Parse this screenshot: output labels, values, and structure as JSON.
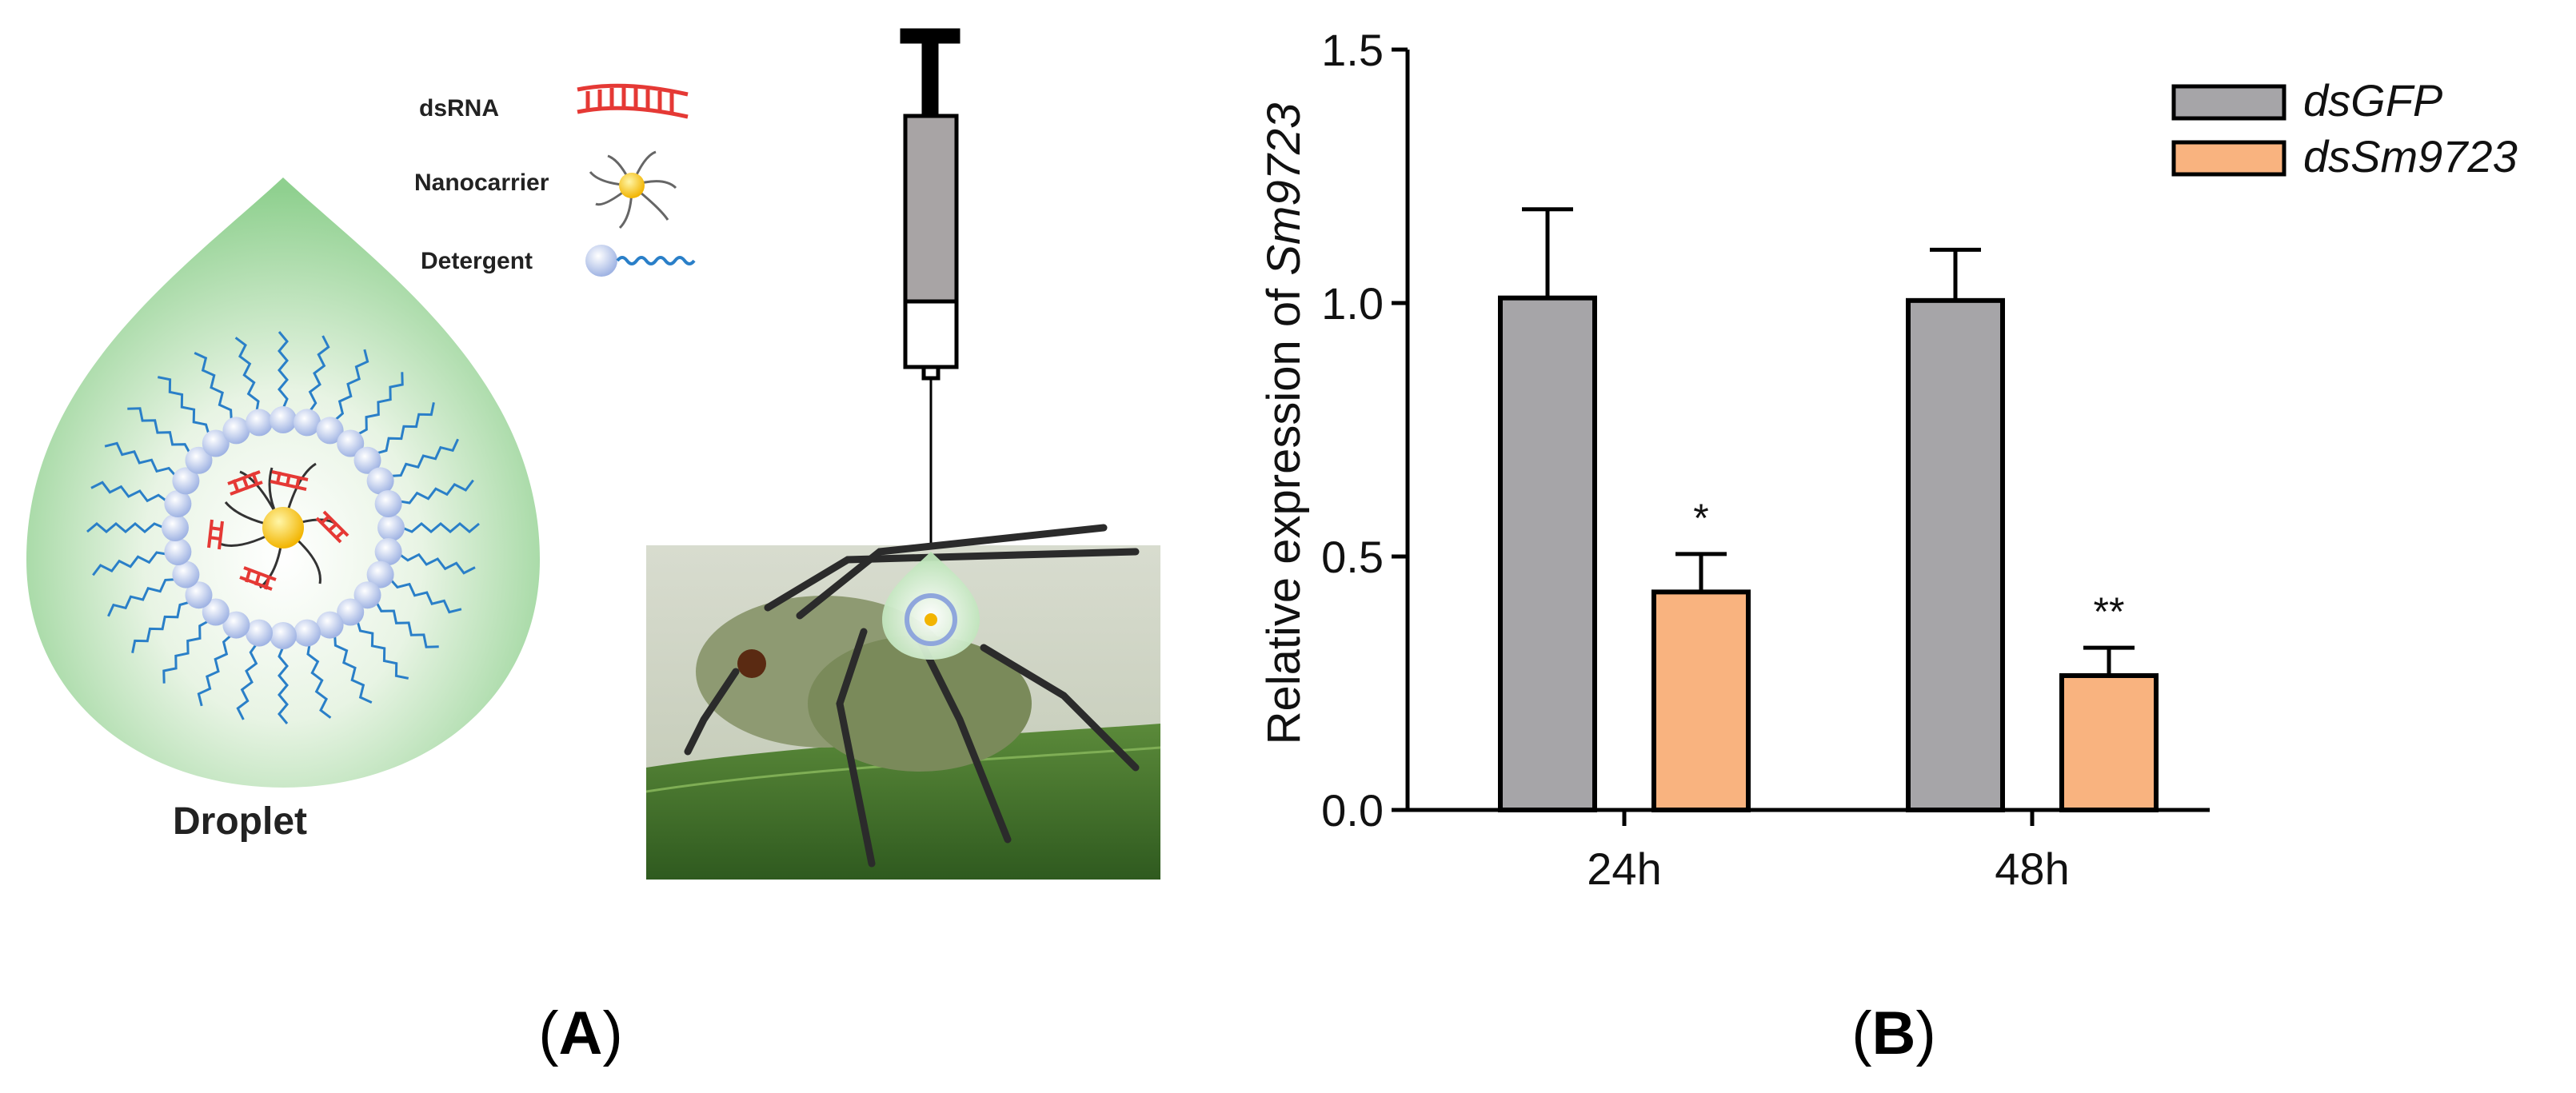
{
  "panel_a": {
    "legend": {
      "dsrna": "dsRNA",
      "nanocarrier": "Nanocarrier",
      "detergent": "Detergent"
    },
    "droplet_label": "Droplet",
    "panel_label": "A"
  },
  "panel_b": {
    "panel_label": "B"
  },
  "chart_data": {
    "type": "bar",
    "categories": [
      "24h",
      "48h"
    ],
    "ylabel_prefix": "Relative expression of ",
    "ylabel_italic": "Sm9723",
    "ylim": [
      0,
      1.5
    ],
    "yticks": [
      "0.0",
      "0.5",
      "1.0",
      "1.5"
    ],
    "ytick_values": [
      0,
      0.5,
      1.0,
      1.5
    ],
    "legend_position": "top-right",
    "grid": false,
    "series": [
      {
        "name": "dsGFP",
        "color": "#a6a5a8",
        "values": [
          1.01,
          1.005
        ],
        "errors": [
          0.175,
          0.1
        ]
      },
      {
        "name": "dsSm9723",
        "color": "#f9b37f",
        "values": [
          0.43,
          0.265
        ],
        "errors": [
          0.075,
          0.055
        ]
      }
    ],
    "significance": [
      {
        "category": "24h",
        "series": "dsSm9723",
        "label": "*"
      },
      {
        "category": "48h",
        "series": "dsSm9723",
        "label": "**"
      }
    ]
  }
}
